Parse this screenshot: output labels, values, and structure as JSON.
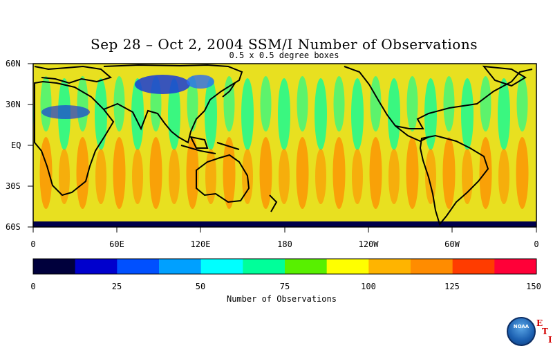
{
  "title": "Sep 28 – Oct 2, 2004 SSM/I Number of Observations",
  "subtitle": "0.5 x 0.5 degree boxes",
  "map": {
    "lat_labels": [
      "60N",
      "30N",
      "EQ",
      "30S",
      "60S"
    ],
    "lon_labels": [
      "0",
      "60E",
      "120E",
      "180",
      "120W",
      "60W",
      "0"
    ],
    "variable": "Number of Observations"
  },
  "colorbar": {
    "title": "Number of Observations",
    "tick_labels": [
      "0",
      "25",
      "50",
      "75",
      "100",
      "125",
      "150"
    ],
    "range": [
      0,
      150
    ],
    "colors": [
      "#00003c",
      "#0000cd",
      "#0050ff",
      "#00a0ff",
      "#00ffff",
      "#00ff9a",
      "#58f000",
      "#ffff00",
      "#ffb400",
      "#ff8c00",
      "#ff3c00",
      "#ff0038"
    ]
  },
  "logo": {
    "name": "noaa-logo",
    "text": "NOAA"
  },
  "corner_letters": [
    "E",
    "T",
    "I"
  ]
}
